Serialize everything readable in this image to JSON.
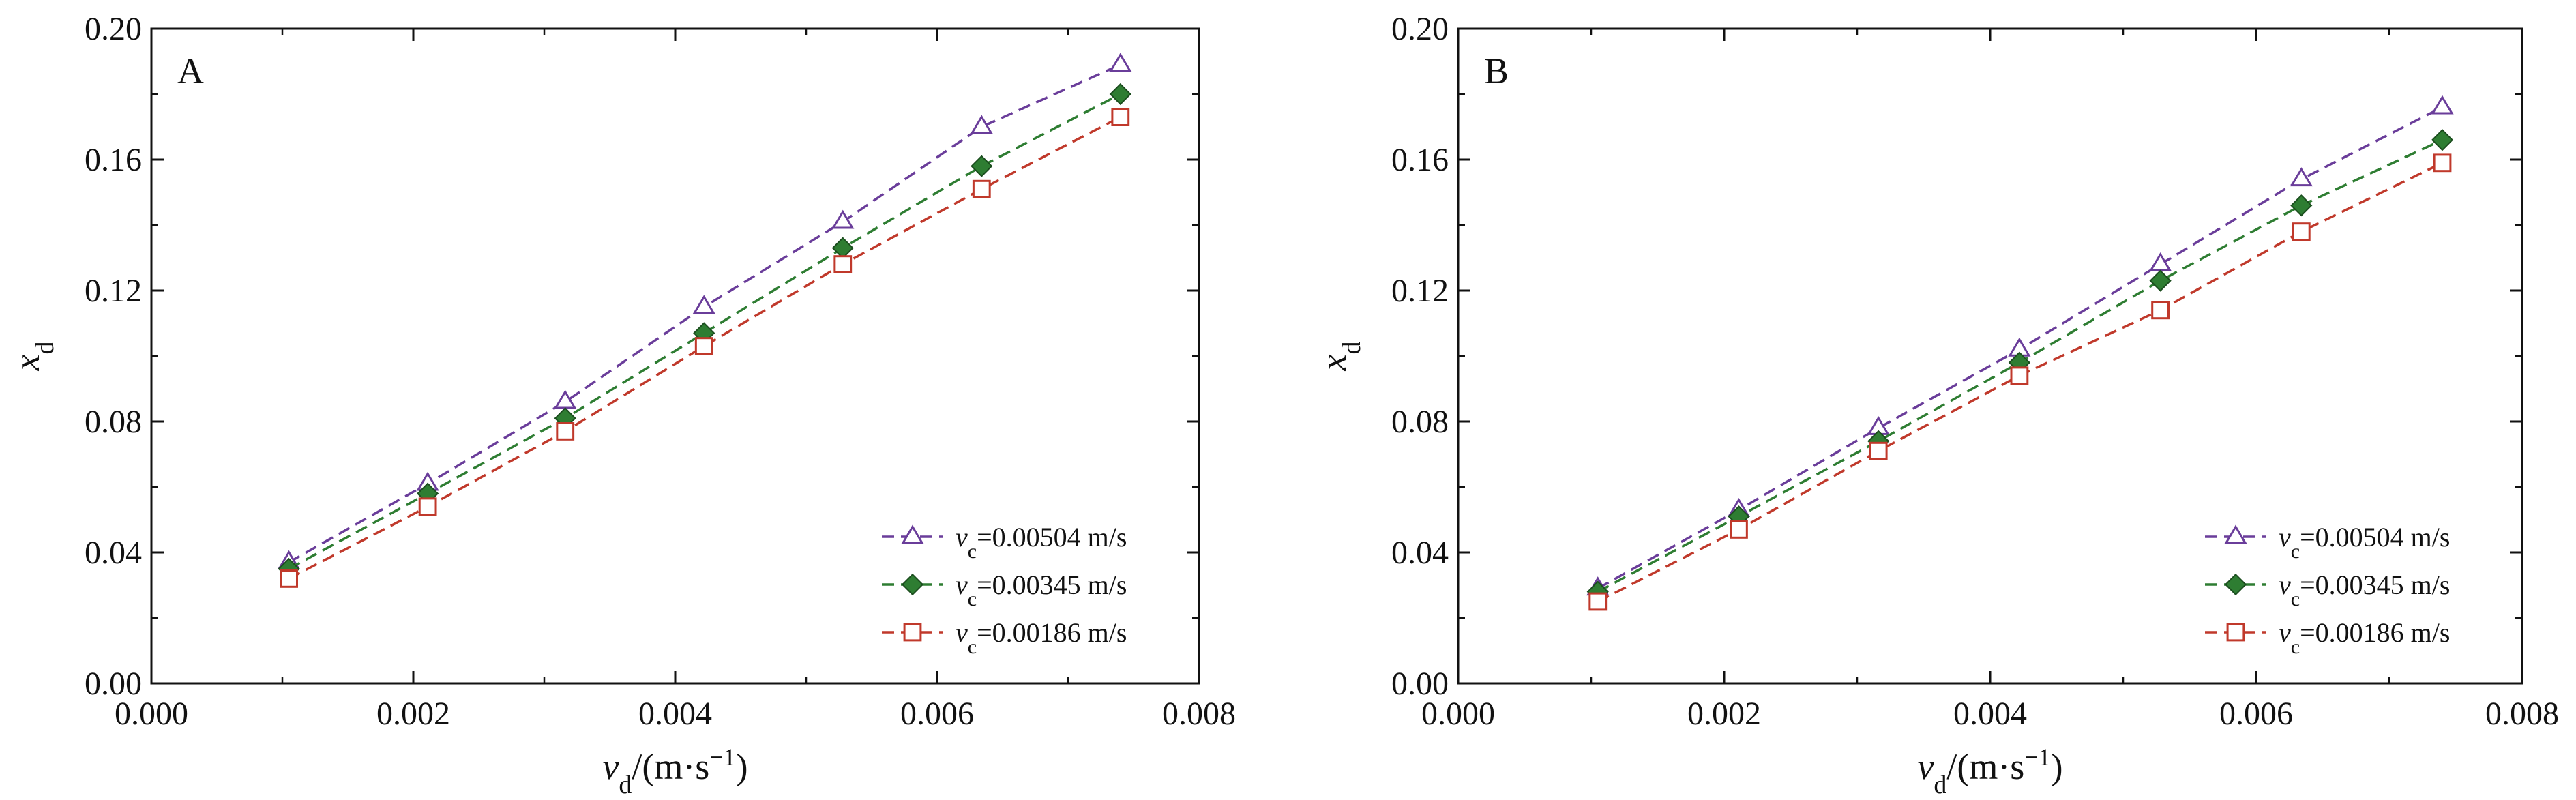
{
  "chart_data": [
    {
      "type": "line",
      "panel_label": "A",
      "xlabel": {
        "var": "v",
        "sub": "d",
        "unit": "/(m·s",
        "sup": "−1",
        "close": ")"
      },
      "ylabel": {
        "var": "x",
        "sub": "d"
      },
      "xlim": [
        0,
        0.008
      ],
      "ylim": [
        0,
        0.2
      ],
      "xticks": [
        "0.000",
        "0.002",
        "0.004",
        "0.006",
        "0.008"
      ],
      "yticks": [
        "0.00",
        "0.04",
        "0.08",
        "0.12",
        "0.16",
        "0.20"
      ],
      "grid": false,
      "legend_position": "bottom-right",
      "x": [
        0.00105,
        0.00211,
        0.00316,
        0.00422,
        0.00528,
        0.00634,
        0.0074
      ],
      "series": [
        {
          "name": "=0.00504 m/s",
          "var": "v",
          "sub": "c",
          "marker": "triangle-open",
          "color": "#6a3d9a",
          "values": [
            0.037,
            0.061,
            0.086,
            0.115,
            0.141,
            0.17,
            0.189
          ]
        },
        {
          "name": "=0.00345 m/s",
          "var": "v",
          "sub": "c",
          "marker": "diamond-filled",
          "color": "#2e7d32",
          "values": [
            0.035,
            0.058,
            0.081,
            0.107,
            0.133,
            0.158,
            0.18
          ]
        },
        {
          "name": "=0.00186 m/s",
          "var": "v",
          "sub": "c",
          "marker": "square-open",
          "color": "#c0392b",
          "values": [
            0.032,
            0.054,
            0.077,
            0.103,
            0.128,
            0.151,
            0.173
          ]
        }
      ]
    },
    {
      "type": "line",
      "panel_label": "B",
      "xlabel": {
        "var": "v",
        "sub": "d",
        "unit": "/(m·s",
        "sup": "−1",
        "close": ")"
      },
      "ylabel": {
        "var": "x",
        "sub": "d"
      },
      "xlim": [
        0,
        0.008
      ],
      "ylim": [
        0,
        0.2
      ],
      "xticks": [
        "0.000",
        "0.002",
        "0.004",
        "0.006",
        "0.008"
      ],
      "yticks": [
        "0.00",
        "0.04",
        "0.08",
        "0.12",
        "0.16",
        "0.20"
      ],
      "grid": false,
      "legend_position": "bottom-right",
      "x": [
        0.00105,
        0.00211,
        0.00316,
        0.00422,
        0.00528,
        0.00634,
        0.0074
      ],
      "series": [
        {
          "name": "=0.00504 m/s",
          "var": "v",
          "sub": "c",
          "marker": "triangle-open",
          "color": "#6a3d9a",
          "values": [
            0.029,
            0.053,
            0.078,
            0.102,
            0.128,
            0.154,
            0.176
          ]
        },
        {
          "name": "=0.00345 m/s",
          "var": "v",
          "sub": "c",
          "marker": "diamond-filled",
          "color": "#2e7d32",
          "values": [
            0.028,
            0.051,
            0.074,
            0.098,
            0.123,
            0.146,
            0.166
          ]
        },
        {
          "name": "=0.00186 m/s",
          "var": "v",
          "sub": "c",
          "marker": "square-open",
          "color": "#c0392b",
          "values": [
            0.025,
            0.047,
            0.071,
            0.094,
            0.114,
            0.138,
            0.159
          ]
        }
      ]
    }
  ]
}
